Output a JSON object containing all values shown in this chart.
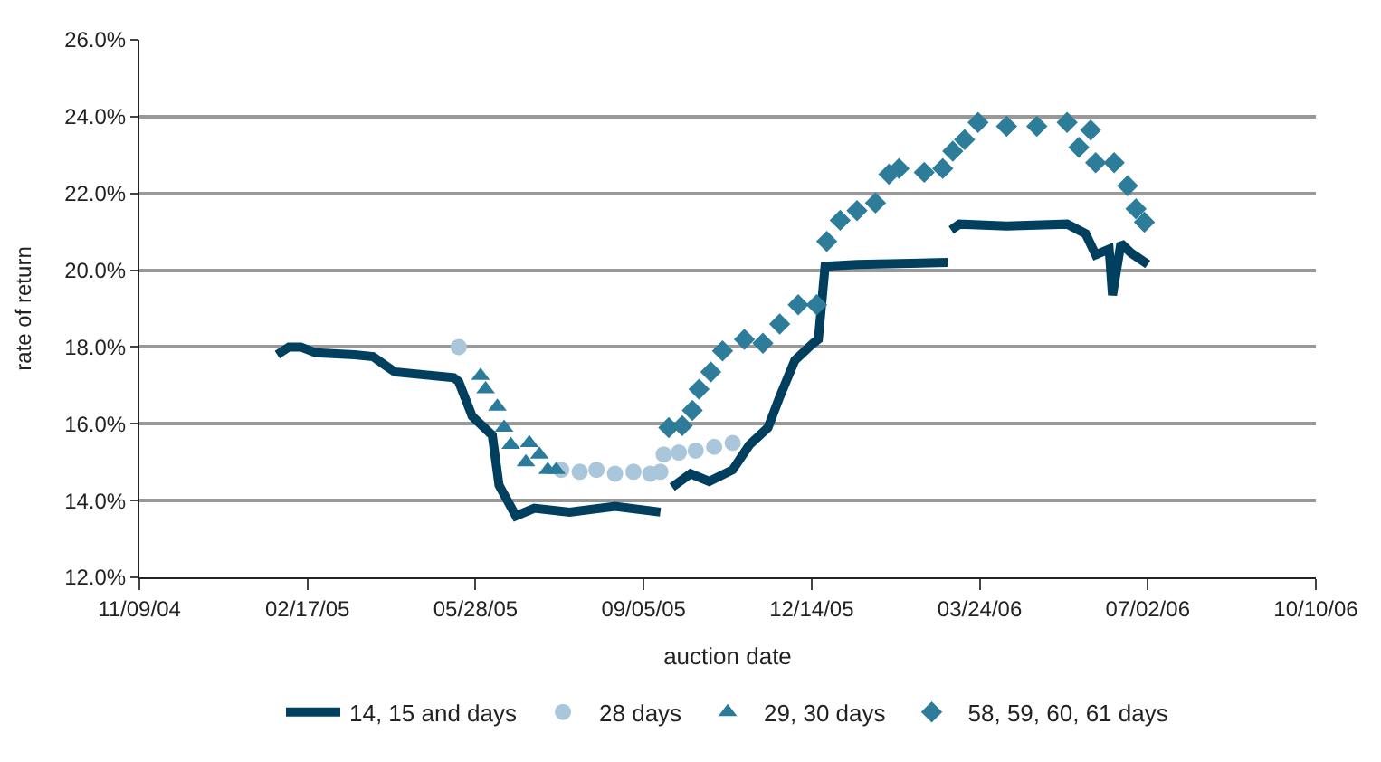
{
  "chart_data": {
    "type": "scatter",
    "xlabel": "auction date",
    "ylabel": "rate of return",
    "xlim": [
      "2004-11-09",
      "2006-10-10"
    ],
    "xticks": [
      {
        "value": "2004-11-09",
        "label": "11/09/04"
      },
      {
        "value": "2005-02-17",
        "label": "02/17/05"
      },
      {
        "value": "2005-05-28",
        "label": "05/28/05"
      },
      {
        "value": "2005-09-05",
        "label": "09/05/05"
      },
      {
        "value": "2005-12-14",
        "label": "12/14/05"
      },
      {
        "value": "2006-03-24",
        "label": "03/24/06"
      },
      {
        "value": "2006-07-02",
        "label": "07/02/06"
      },
      {
        "value": "2006-10-10",
        "label": "10/10/06"
      }
    ],
    "ylim": [
      12,
      26
    ],
    "yticks": [
      {
        "value": 12,
        "label": "12.0%"
      },
      {
        "value": 14,
        "label": "14.0%"
      },
      {
        "value": 16,
        "label": "16.0%"
      },
      {
        "value": 18,
        "label": "18.0%"
      },
      {
        "value": 20,
        "label": "20.0%"
      },
      {
        "value": 22,
        "label": "22.0%"
      },
      {
        "value": 24,
        "label": "24.0%"
      },
      {
        "value": 26,
        "label": "26.0%"
      }
    ],
    "grid": "y",
    "legend": "bottom",
    "series": [
      {
        "name": "14, 15 and days",
        "type": "line",
        "marker": "none",
        "line_style": "solid",
        "color": "#003f5e",
        "x": [
          "2005-01-30",
          "2005-02-06",
          "2005-02-13",
          "2005-02-22",
          "2005-03-17",
          "2005-03-28",
          "2005-04-05",
          "2005-04-10",
          "2005-05-15",
          "2005-05-18",
          "2005-05-26",
          "2005-06-07",
          "2005-06-11",
          "2005-06-21",
          "2005-07-02",
          "2005-07-23",
          "2005-08-19",
          "2005-09-15",
          "2005-09-18",
          "2005-09-22",
          "2005-10-03",
          "2005-10-14",
          "2005-10-28",
          "2005-11-07",
          "2005-11-18",
          "2005-11-25",
          "2005-12-04",
          "2005-12-15",
          "2005-12-18",
          "2005-12-22",
          "2006-01-10",
          "2006-03-05",
          "2006-03-06",
          "2006-03-07",
          "2006-03-12",
          "2006-04-09",
          "2006-05-15",
          "2006-05-26",
          "2006-06-01",
          "2006-06-09",
          "2006-06-11",
          "2006-06-16",
          "2006-06-22",
          "2006-07-02"
        ],
        "values": [
          17.8,
          18.0,
          18.0,
          17.85,
          17.8,
          17.75,
          17.5,
          17.35,
          17.2,
          17.1,
          16.2,
          15.7,
          14.4,
          13.6,
          13.8,
          13.7,
          13.85,
          13.7,
          null,
          14.35,
          14.7,
          14.5,
          14.8,
          15.45,
          15.9,
          16.7,
          17.65,
          18.1,
          18.2,
          20.1,
          20.15,
          20.2,
          null,
          21.05,
          21.2,
          21.15,
          21.2,
          20.95,
          20.4,
          20.55,
          19.35,
          20.7,
          20.45,
          20.15
        ]
      },
      {
        "name": "28 days",
        "marker": "circle",
        "color": "#a9c6da",
        "x": [
          "2005-05-18",
          "2005-07-18",
          "2005-07-29",
          "2005-08-08",
          "2005-08-19",
          "2005-08-30",
          "2005-09-09",
          "2005-09-15",
          "2005-09-17",
          "2005-09-26",
          "2005-10-06",
          "2005-10-17",
          "2005-10-28"
        ],
        "values": [
          18.0,
          14.8,
          14.75,
          14.8,
          14.7,
          14.75,
          14.7,
          14.75,
          15.2,
          15.25,
          15.3,
          15.4,
          15.5
        ]
      },
      {
        "name": "29, 30 days",
        "marker": "triangle",
        "color": "#2a7b9b",
        "x": [
          "2005-05-31",
          "2005-06-03",
          "2005-06-10",
          "2005-06-14",
          "2005-06-18",
          "2005-06-27",
          "2005-06-29",
          "2005-07-05",
          "2005-07-10",
          "2005-07-15"
        ],
        "values": [
          17.25,
          16.9,
          16.45,
          15.9,
          15.45,
          15.0,
          15.5,
          15.2,
          14.8,
          14.8
        ]
      },
      {
        "name": "58, 59, 60, 61 days",
        "marker": "diamond",
        "color": "#2d7d9a",
        "x": [
          "2005-09-20",
          "2005-09-28",
          "2005-10-04",
          "2005-10-08",
          "2005-10-15",
          "2005-10-22",
          "2005-11-04",
          "2005-11-15",
          "2005-11-25",
          "2005-12-06",
          "2005-12-17",
          "2005-12-23",
          "2005-12-31",
          "2006-01-10",
          "2006-01-21",
          "2006-01-29",
          "2006-02-04",
          "2006-02-19",
          "2006-03-02",
          "2006-03-08",
          "2006-03-15",
          "2006-03-23",
          "2006-04-09",
          "2006-04-27",
          "2006-05-15",
          "2006-05-22",
          "2006-05-29",
          "2006-06-01",
          "2006-06-12",
          "2006-06-20",
          "2006-06-25",
          "2006-06-30"
        ],
        "values": [
          15.9,
          15.95,
          16.35,
          16.9,
          17.35,
          17.9,
          18.2,
          18.1,
          18.6,
          19.1,
          19.1,
          20.75,
          21.3,
          21.55,
          21.75,
          22.5,
          22.65,
          22.55,
          22.65,
          23.1,
          23.4,
          23.85,
          23.75,
          23.75,
          23.85,
          23.2,
          23.65,
          22.8,
          22.8,
          22.2,
          21.6,
          21.25
        ]
      }
    ]
  }
}
